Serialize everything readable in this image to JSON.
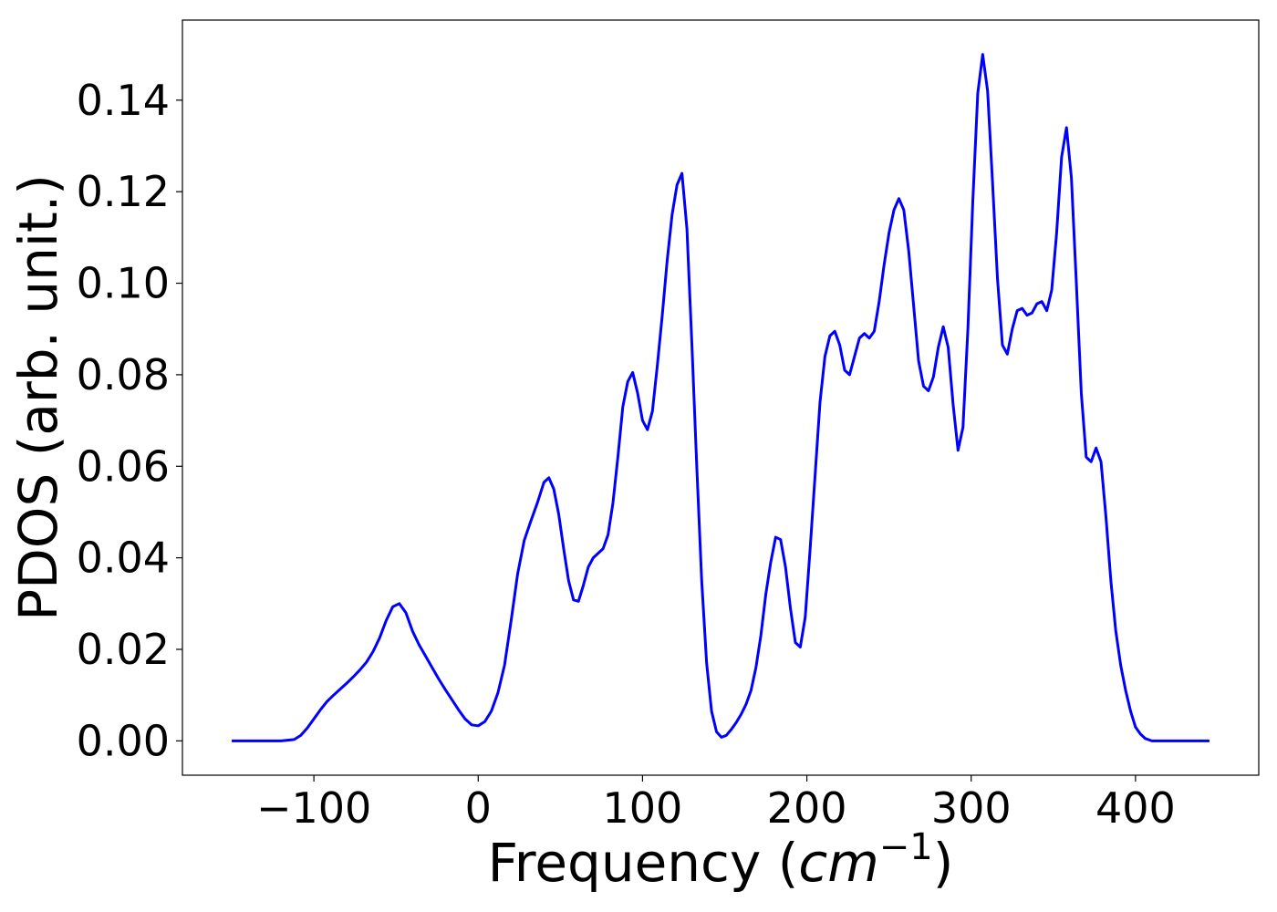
{
  "chart_data": {
    "type": "line",
    "xlabel": "Frequency (cm⁻¹)",
    "xlabel_parts": {
      "prefix": "Frequency (",
      "var": "cm",
      "sup": "−1",
      "suffix": ")"
    },
    "ylabel": "PDOS (arb. unit.)",
    "xlim": [
      -180,
      475
    ],
    "ylim": [
      -0.0075,
      0.1575
    ],
    "xticks": [
      -100,
      0,
      100,
      200,
      300,
      400
    ],
    "xtick_labels": [
      "−100",
      "0",
      "100",
      "200",
      "300",
      "400"
    ],
    "yticks": [
      0.0,
      0.02,
      0.04,
      0.06,
      0.08,
      0.1,
      0.12,
      0.14
    ],
    "ytick_labels": [
      "0.00",
      "0.02",
      "0.04",
      "0.06",
      "0.08",
      "0.10",
      "0.12",
      "0.14"
    ],
    "grid": false,
    "series": [
      {
        "color": "#0000ff",
        "x": [
          -150,
          -140,
          -130,
          -120,
          -112,
          -108,
          -104,
          -100,
          -96,
          -92,
          -88,
          -84,
          -80,
          -76,
          -72,
          -68,
          -64,
          -60,
          -56,
          -52,
          -48,
          -44,
          -40,
          -36,
          -32,
          -28,
          -24,
          -20,
          -16,
          -12,
          -8,
          -4,
          0,
          4,
          8,
          12,
          16,
          20,
          24,
          28,
          32,
          36,
          40,
          43,
          46,
          49,
          52,
          55,
          58,
          61,
          64,
          67,
          70,
          73,
          76,
          79,
          82,
          85,
          88,
          91,
          94,
          97,
          100,
          103,
          106,
          109,
          112,
          115,
          118,
          121,
          124,
          127,
          130,
          133,
          136,
          139,
          142,
          145,
          148,
          151,
          154,
          157,
          160,
          163,
          166,
          169,
          172,
          175,
          178,
          181,
          184,
          187,
          190,
          193,
          196,
          199,
          202,
          205,
          208,
          211,
          214,
          217,
          220,
          223,
          226,
          229,
          232,
          235,
          238,
          241,
          244,
          247,
          250,
          253,
          256,
          259,
          262,
          265,
          268,
          271,
          274,
          277,
          280,
          283,
          286,
          289,
          292,
          295,
          298,
          301,
          304,
          307,
          310,
          313,
          316,
          319,
          322,
          325,
          328,
          331,
          334,
          337,
          340,
          343,
          346,
          349,
          352,
          355,
          358,
          361,
          364,
          367,
          370,
          373,
          376,
          379,
          382,
          385,
          388,
          391,
          394,
          397,
          400,
          403,
          406,
          410,
          420,
          430,
          445
        ],
        "y": [
          0,
          0,
          0,
          0,
          0.0003,
          0.0012,
          0.0028,
          0.0048,
          0.0068,
          0.0086,
          0.01,
          0.0113,
          0.0126,
          0.014,
          0.0155,
          0.0172,
          0.0195,
          0.0225,
          0.0263,
          0.0293,
          0.03,
          0.028,
          0.024,
          0.021,
          0.0185,
          0.016,
          0.0135,
          0.0112,
          0.009,
          0.0068,
          0.0048,
          0.0035,
          0.0033,
          0.0042,
          0.0065,
          0.0105,
          0.0165,
          0.0262,
          0.0365,
          0.0438,
          0.048,
          0.052,
          0.0565,
          0.0575,
          0.055,
          0.0495,
          0.042,
          0.035,
          0.0308,
          0.0305,
          0.034,
          0.038,
          0.04,
          0.041,
          0.042,
          0.045,
          0.052,
          0.062,
          0.073,
          0.0785,
          0.0805,
          0.076,
          0.07,
          0.068,
          0.072,
          0.082,
          0.093,
          0.105,
          0.115,
          0.1215,
          0.124,
          0.112,
          0.087,
          0.06,
          0.035,
          0.017,
          0.0065,
          0.002,
          0.0008,
          0.0012,
          0.0025,
          0.004,
          0.0058,
          0.008,
          0.011,
          0.016,
          0.023,
          0.032,
          0.039,
          0.0445,
          0.044,
          0.038,
          0.029,
          0.0215,
          0.0205,
          0.027,
          0.042,
          0.058,
          0.074,
          0.084,
          0.0885,
          0.0895,
          0.0865,
          0.081,
          0.08,
          0.084,
          0.088,
          0.089,
          0.088,
          0.0895,
          0.096,
          0.104,
          0.111,
          0.116,
          0.1185,
          0.116,
          0.107,
          0.095,
          0.083,
          0.0775,
          0.0765,
          0.0795,
          0.086,
          0.0905,
          0.086,
          0.0735,
          0.0635,
          0.0685,
          0.09,
          0.118,
          0.1415,
          0.15,
          0.142,
          0.122,
          0.101,
          0.0865,
          0.0845,
          0.09,
          0.094,
          0.0945,
          0.093,
          0.0935,
          0.0955,
          0.096,
          0.094,
          0.0985,
          0.111,
          0.1275,
          0.134,
          0.123,
          0.1,
          0.076,
          0.062,
          0.061,
          0.064,
          0.061,
          0.049,
          0.035,
          0.024,
          0.0165,
          0.011,
          0.0065,
          0.003,
          0.0015,
          0.0005,
          0,
          0,
          0,
          0
        ]
      }
    ]
  }
}
